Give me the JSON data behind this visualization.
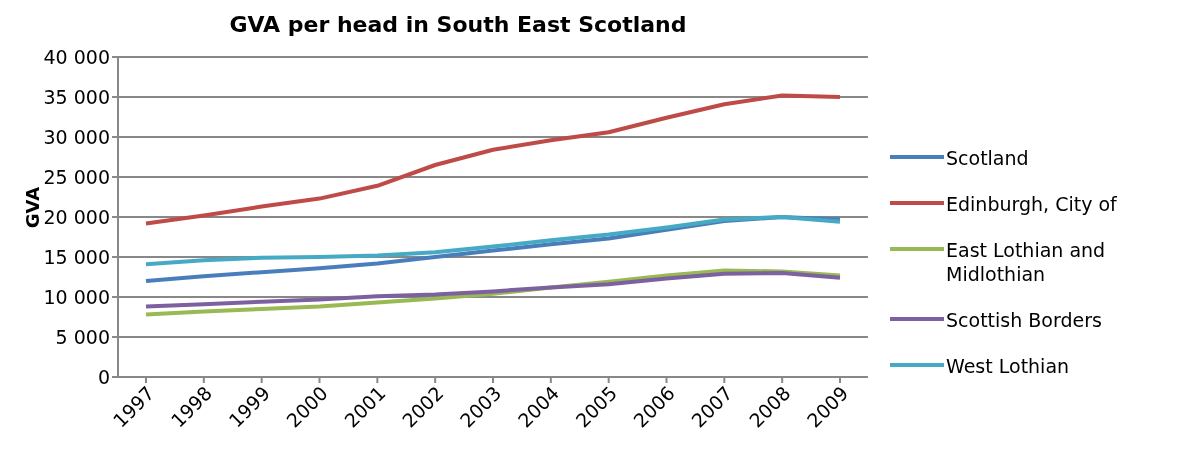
{
  "chart_data": {
    "type": "line",
    "title": "GVA per head in South East Scotland",
    "ylabel": "GVA",
    "categories": [
      "1997",
      "1998",
      "1999",
      "2000",
      "2001",
      "2002",
      "2003",
      "2004",
      "2005",
      "2006",
      "2007",
      "2008",
      "2009"
    ],
    "series": [
      {
        "name": "Scotland",
        "color": "#4a7ebb",
        "values": [
          12000,
          12600,
          13100,
          13600,
          14200,
          15000,
          15800,
          16600,
          17300,
          18400,
          19500,
          20000,
          19700
        ]
      },
      {
        "name": "Edinburgh, City of",
        "color": "#be4b48",
        "values": [
          19200,
          20200,
          21300,
          22300,
          23900,
          26500,
          28400,
          29600,
          30600,
          32400,
          34100,
          35200,
          35000
        ]
      },
      {
        "name": "East Lothian and Midlothian",
        "color": "#98b954",
        "values": [
          7800,
          8200,
          8500,
          8800,
          9300,
          9800,
          10400,
          11200,
          11900,
          12700,
          13300,
          13200,
          12700
        ]
      },
      {
        "name": "Scottish Borders",
        "color": "#7d60a0",
        "values": [
          8800,
          9100,
          9400,
          9700,
          10100,
          10300,
          10700,
          11200,
          11600,
          12300,
          12900,
          13000,
          12400
        ]
      },
      {
        "name": "West Lothian",
        "color": "#46aac5",
        "values": [
          14100,
          14600,
          14900,
          15000,
          15200,
          15600,
          16300,
          17100,
          17800,
          18700,
          19700,
          20000,
          19400
        ]
      }
    ],
    "ylim": [
      0,
      40000
    ],
    "yticks": [
      {
        "value": 0,
        "label": "0"
      },
      {
        "value": 5000,
        "label": "5 000"
      },
      {
        "value": 10000,
        "label": "10 000"
      },
      {
        "value": 15000,
        "label": "15 000"
      },
      {
        "value": 20000,
        "label": "20 000"
      },
      {
        "value": 25000,
        "label": "25 000"
      },
      {
        "value": 30000,
        "label": "30 000"
      },
      {
        "value": 35000,
        "label": "35 000"
      },
      {
        "value": 40000,
        "label": "40 000"
      }
    ],
    "grid": "y",
    "legend": "right",
    "marker": "none",
    "line_style": "solid"
  }
}
